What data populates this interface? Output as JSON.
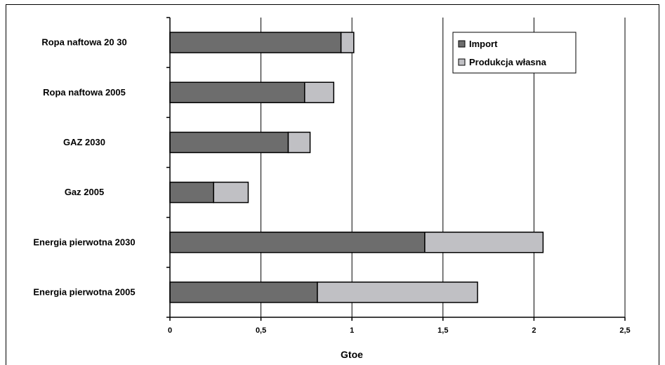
{
  "chart_data": {
    "type": "bar",
    "orientation": "horizontal",
    "stacked": true,
    "categories": [
      "Ropa naftowa 20 30",
      "Ropa naftowa 2005",
      "GAZ 2030",
      "Gaz 2005",
      "Energia pierwotna 2030",
      "Energia pierwotna 2005"
    ],
    "series": [
      {
        "name": "Import",
        "color": "#6d6d6d",
        "values": [
          0.94,
          0.74,
          0.65,
          0.24,
          1.4,
          0.81
        ]
      },
      {
        "name": "Produkcja własna",
        "color": "#c0c0c4",
        "values": [
          0.07,
          0.16,
          0.12,
          0.19,
          0.65,
          0.88
        ]
      }
    ],
    "xlabel": "Gtoe",
    "xlim": [
      0,
      2.5
    ],
    "xticks": [
      0,
      0.5,
      1,
      1.5,
      2,
      2.5
    ],
    "xtick_labels": [
      "0",
      "0,5",
      "1",
      "1,5",
      "2",
      "2,5"
    ],
    "grid": "vertical",
    "legend_position": "top-right"
  }
}
